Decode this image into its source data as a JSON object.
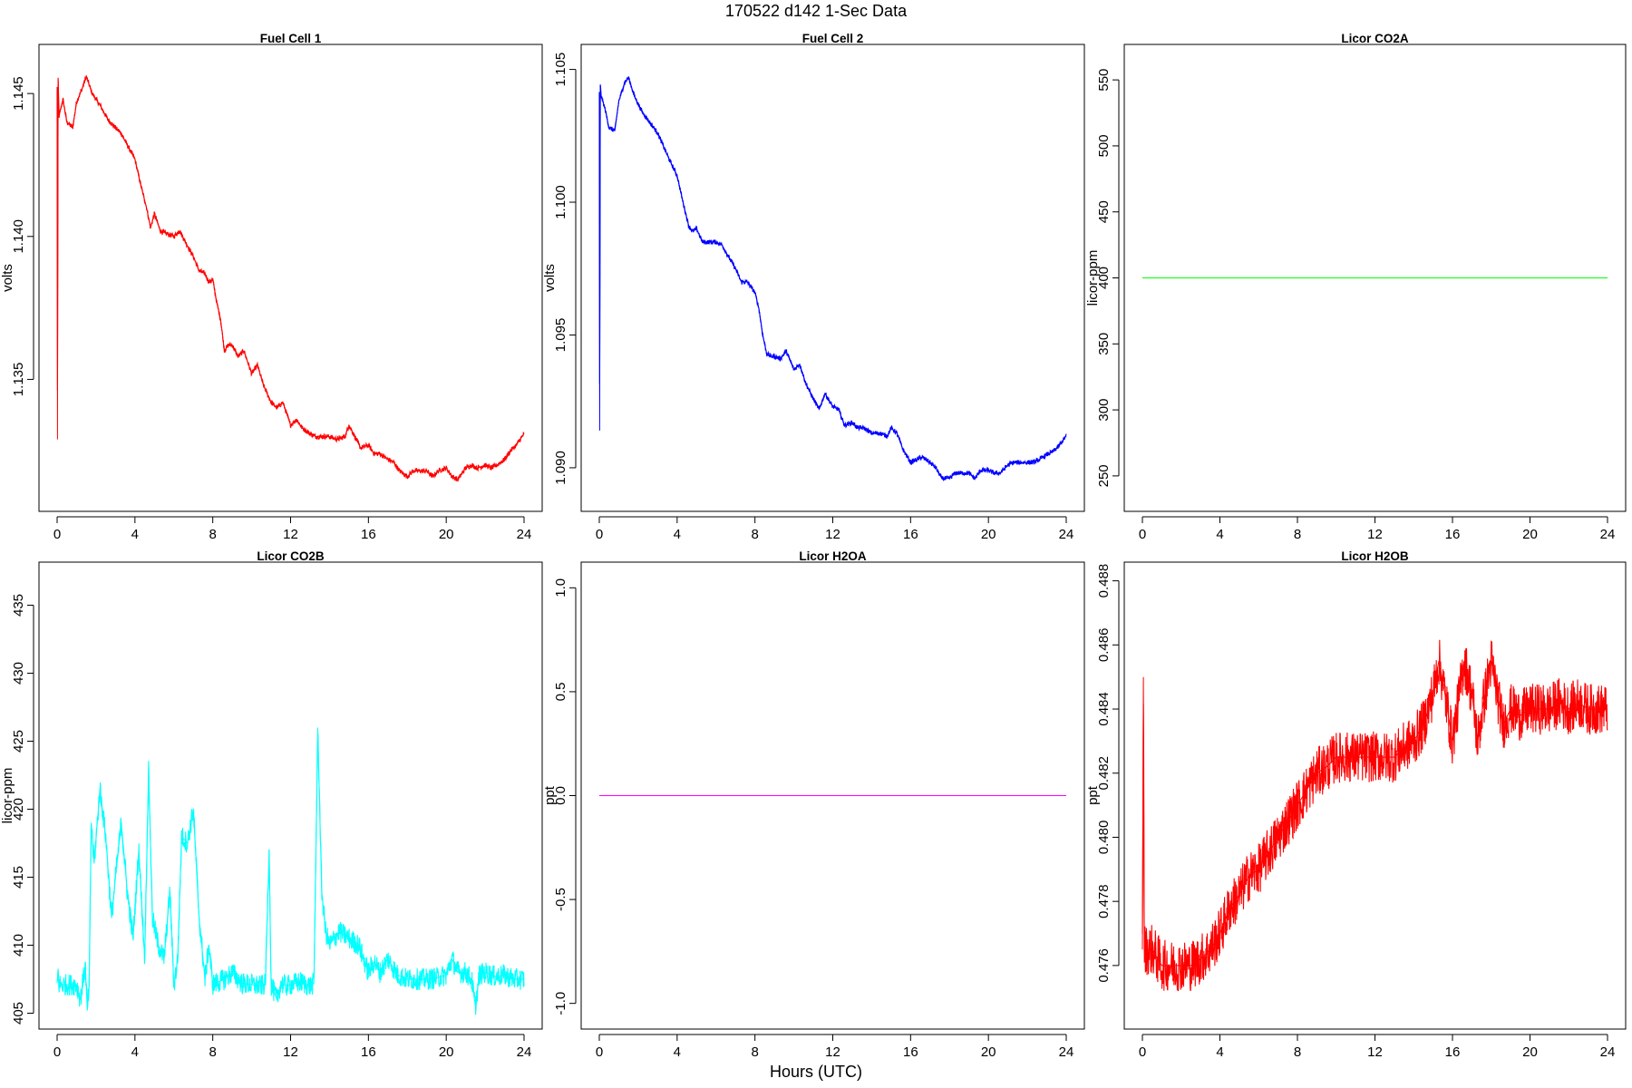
{
  "figure": {
    "title": "170522   d142   1-Sec Data",
    "xlabel": "Hours (UTC)"
  },
  "chart_data": [
    {
      "type": "line",
      "title": "Fuel Cell 1",
      "xlabel": "",
      "ylabel": "volts",
      "color": "#ff0000",
      "xlim": [
        0,
        24
      ],
      "ylim": [
        1.1307,
        1.1464
      ],
      "xticks": [
        "0",
        "4",
        "8",
        "12",
        "16",
        "20",
        "24"
      ],
      "yticks": [
        "1.135",
        "1.140",
        "1.145"
      ],
      "grid": false,
      "series": [
        {
          "x": [
            0,
            0.02,
            0.05,
            0.1,
            0.3,
            0.5,
            0.8,
            1.0,
            1.3,
            1.5,
            1.8,
            2.2,
            2.6,
            3.0,
            3.3,
            3.6,
            4.0,
            4.3,
            4.6,
            4.8,
            5.0,
            5.3,
            5.6,
            6.0,
            6.3,
            6.6,
            7.0,
            7.3,
            7.6,
            7.8,
            8.0,
            8.2,
            8.4,
            8.6,
            8.8,
            9.0,
            9.3,
            9.6,
            10.0,
            10.3,
            10.6,
            11.0,
            11.3,
            11.6,
            12.0,
            12.3,
            12.6,
            13.0,
            13.3,
            13.6,
            14.0,
            14.4,
            14.8,
            15.0,
            15.3,
            15.6,
            16.0,
            16.3,
            16.6,
            17.0,
            17.3,
            17.6,
            18.0,
            18.3,
            18.6,
            19.0,
            19.3,
            19.6,
            20.0,
            20.3,
            20.6,
            21.0,
            21.3,
            21.6,
            22.0,
            22.3,
            22.6,
            23.0,
            23.3,
            23.6,
            24.0
          ],
          "values": [
            1.1452,
            1.1329,
            1.1455,
            1.1442,
            1.1448,
            1.144,
            1.1438,
            1.1447,
            1.1452,
            1.1456,
            1.145,
            1.1446,
            1.1441,
            1.1438,
            1.1436,
            1.1432,
            1.1427,
            1.1418,
            1.141,
            1.1403,
            1.1408,
            1.1402,
            1.1401,
            1.14,
            1.1402,
            1.1398,
            1.1393,
            1.1388,
            1.1387,
            1.1384,
            1.1385,
            1.1377,
            1.1371,
            1.136,
            1.1362,
            1.1362,
            1.1358,
            1.136,
            1.1352,
            1.1355,
            1.1348,
            1.1342,
            1.134,
            1.1342,
            1.1334,
            1.1336,
            1.1333,
            1.1331,
            1.133,
            1.133,
            1.133,
            1.1329,
            1.133,
            1.1334,
            1.133,
            1.1326,
            1.1327,
            1.1324,
            1.1324,
            1.1322,
            1.1321,
            1.1318,
            1.1316,
            1.1318,
            1.1318,
            1.1318,
            1.1316,
            1.1318,
            1.1319,
            1.1316,
            1.1315,
            1.1319,
            1.132,
            1.1319,
            1.132,
            1.1319,
            1.132,
            1.1322,
            1.1325,
            1.1327,
            1.1331
          ]
        }
      ],
      "noise": 0.00018
    },
    {
      "type": "line",
      "title": "Fuel Cell 2",
      "xlabel": "",
      "ylabel": "volts",
      "color": "#0000ff",
      "xlim": [
        0,
        24
      ],
      "ylim": [
        1.0887,
        1.1056
      ],
      "xticks": [
        "0",
        "4",
        "8",
        "12",
        "16",
        "20",
        "24"
      ],
      "yticks": [
        "1.090",
        "1.095",
        "1.100",
        "1.105"
      ],
      "grid": false,
      "series": [
        {
          "x": [
            0,
            0.02,
            0.05,
            0.1,
            0.3,
            0.5,
            0.8,
            1.0,
            1.3,
            1.5,
            1.8,
            2.2,
            2.6,
            3.0,
            3.3,
            3.6,
            4.0,
            4.3,
            4.6,
            4.8,
            5.0,
            5.3,
            5.6,
            6.0,
            6.3,
            6.6,
            7.0,
            7.3,
            7.6,
            7.8,
            8.0,
            8.2,
            8.4,
            8.6,
            8.8,
            9.0,
            9.3,
            9.6,
            10.0,
            10.3,
            10.6,
            11.0,
            11.3,
            11.6,
            12.0,
            12.3,
            12.6,
            13.0,
            13.3,
            13.6,
            14.0,
            14.4,
            14.8,
            15.0,
            15.3,
            15.6,
            16.0,
            16.3,
            16.6,
            17.0,
            17.3,
            17.6,
            18.0,
            18.3,
            18.6,
            19.0,
            19.3,
            19.6,
            20.0,
            20.3,
            20.6,
            21.0,
            21.3,
            21.6,
            22.0,
            22.3,
            22.6,
            23.0,
            23.3,
            23.6,
            24.0
          ],
          "values": [
            1.1041,
            1.0914,
            1.1044,
            1.104,
            1.1035,
            1.1028,
            1.1027,
            1.1038,
            1.1045,
            1.1047,
            1.104,
            1.1034,
            1.103,
            1.1026,
            1.1021,
            1.1016,
            1.101,
            1.1,
            1.0991,
            1.0989,
            1.099,
            1.0985,
            1.0985,
            1.0985,
            1.0984,
            1.098,
            1.0975,
            1.097,
            1.097,
            1.0968,
            1.0966,
            1.096,
            1.095,
            1.0943,
            1.0942,
            1.0942,
            1.0941,
            1.0944,
            1.0937,
            1.0939,
            1.0932,
            1.0926,
            1.0922,
            1.0928,
            1.0923,
            1.0922,
            1.0916,
            1.0917,
            1.0915,
            1.0915,
            1.0913,
            1.0913,
            1.0912,
            1.0915,
            1.0913,
            1.0907,
            1.0902,
            1.0903,
            1.0904,
            1.0902,
            1.09,
            1.0896,
            1.0896,
            1.0898,
            1.0898,
            1.0898,
            1.0896,
            1.0899,
            1.0899,
            1.0898,
            1.0898,
            1.0901,
            1.0902,
            1.0902,
            1.0902,
            1.0902,
            1.0903,
            1.0905,
            1.0906,
            1.0908,
            1.0912
          ]
        }
      ],
      "noise": 0.00018
    },
    {
      "type": "line",
      "title": "Licor CO2A",
      "xlabel": "",
      "ylabel": "licor-ppm",
      "color": "#00ff00",
      "xlim": [
        0,
        24
      ],
      "ylim": [
        230,
        570
      ],
      "xticks": [
        "0",
        "4",
        "8",
        "12",
        "16",
        "20",
        "24"
      ],
      "yticks": [
        "250",
        "300",
        "350",
        "400",
        "450",
        "500",
        "550"
      ],
      "grid": false,
      "series": [
        {
          "x": [
            0,
            24
          ],
          "values": [
            400,
            400
          ]
        }
      ],
      "noise": 0
    },
    {
      "type": "line",
      "title": "Licor CO2B",
      "xlabel": "",
      "ylabel": "licor-ppm",
      "color": "#00ffff",
      "xlim": [
        0,
        24
      ],
      "ylim": [
        404.5,
        437.5
      ],
      "xticks": [
        "0",
        "4",
        "8",
        "12",
        "16",
        "20",
        "24"
      ],
      "yticks": [
        "405",
        "410",
        "415",
        "420",
        "425",
        "430",
        "435"
      ],
      "grid": false,
      "series": [
        {
          "x": [
            0,
            0.05,
            0.1,
            1.0,
            1.2,
            1.3,
            1.45,
            1.55,
            1.65,
            1.75,
            1.9,
            2.2,
            2.5,
            2.8,
            3.0,
            3.3,
            3.6,
            3.9,
            4.2,
            4.5,
            4.7,
            4.9,
            5.2,
            5.5,
            5.8,
            6.0,
            6.2,
            6.4,
            6.7,
            7.0,
            7.3,
            7.6,
            7.8,
            8.0,
            8.3,
            8.6,
            9.0,
            9.5,
            10.0,
            10.4,
            10.7,
            10.9,
            11.0,
            11.3,
            11.5,
            11.8,
            12.0,
            12.5,
            13.0,
            13.2,
            13.4,
            13.6,
            13.8,
            14.0,
            14.5,
            15.0,
            15.5,
            16.0,
            16.3,
            16.6,
            17.0,
            17.5,
            18.0,
            18.5,
            19.0,
            19.5,
            20.0,
            20.3,
            20.6,
            21.0,
            21.3,
            21.5,
            21.7,
            22.0,
            22.5,
            23.0,
            23.5,
            24.0
          ],
          "values": [
            407.2,
            408.0,
            407.1,
            407.1,
            406.0,
            407.1,
            408.5,
            405.2,
            407.0,
            419.0,
            416.0,
            421.5,
            418.0,
            412.0,
            415.0,
            419.0,
            414.0,
            410.5,
            417.0,
            409.0,
            423.0,
            412.0,
            410.0,
            409.0,
            414.0,
            407.0,
            409.0,
            418.0,
            417.5,
            420.0,
            412.0,
            407.5,
            410.0,
            407.1,
            407.3,
            407.5,
            408.0,
            407.2,
            407.1,
            407.0,
            407.1,
            417.0,
            407.1,
            406.0,
            407.2,
            407.0,
            407.1,
            407.3,
            407.0,
            407.2,
            426.0,
            414.0,
            411.0,
            410.0,
            411.0,
            410.5,
            410.0,
            408.0,
            408.8,
            408.0,
            409.0,
            407.8,
            407.5,
            407.5,
            407.5,
            407.6,
            407.8,
            409.0,
            408.0,
            408.0,
            407.5,
            405.5,
            407.8,
            408.0,
            407.7,
            407.8,
            407.5,
            407.5
          ]
        }
      ],
      "noise": 1.6
    },
    {
      "type": "line",
      "title": "Licor H2OA",
      "xlabel": "",
      "ylabel": "ppt",
      "color": "#ff00ff",
      "xlim": [
        0,
        24
      ],
      "ylim": [
        -1.08,
        1.08
      ],
      "xticks": [
        "0",
        "4",
        "8",
        "12",
        "16",
        "20",
        "24"
      ],
      "yticks": [
        "-1.0",
        "-0.5",
        "0.0",
        "0.5",
        "1.0"
      ],
      "grid": false,
      "series": [
        {
          "x": [
            0,
            24
          ],
          "values": [
            0,
            0
          ]
        }
      ],
      "noise": 0
    },
    {
      "type": "line",
      "title": "Licor H2OB",
      "xlabel": "",
      "ylabel": "ppt",
      "color": "#ff0000",
      "xlim": [
        0,
        24
      ],
      "ylim": [
        0.4743,
        0.4883
      ],
      "xticks": [
        "0",
        "4",
        "8",
        "12",
        "16",
        "20",
        "24"
      ],
      "yticks": [
        "0.476",
        "0.478",
        "0.480",
        "0.482",
        "0.484",
        "0.486",
        "0.488"
      ],
      "grid": false,
      "series": [
        {
          "x": [
            0,
            0.05,
            0.1,
            0.5,
            1.0,
            1.5,
            2.0,
            2.5,
            3.0,
            3.5,
            4.0,
            4.5,
            5.0,
            5.5,
            6.0,
            6.5,
            7.0,
            7.5,
            8.0,
            8.5,
            9.0,
            9.5,
            10.0,
            10.5,
            11.0,
            11.5,
            12.0,
            12.5,
            13.0,
            13.5,
            14.0,
            14.5,
            15.0,
            15.3,
            15.6,
            16.0,
            16.3,
            16.6,
            17.0,
            17.3,
            17.6,
            18.0,
            18.3,
            18.6,
            19.0,
            19.5,
            20.0,
            20.5,
            21.0,
            21.5,
            22.0,
            22.5,
            23.0,
            23.5,
            24.0
          ],
          "values": [
            0.4765,
            0.485,
            0.4765,
            0.4765,
            0.476,
            0.476,
            0.476,
            0.476,
            0.4762,
            0.4765,
            0.477,
            0.4778,
            0.4782,
            0.4788,
            0.479,
            0.4795,
            0.48,
            0.4805,
            0.481,
            0.4815,
            0.482,
            0.4822,
            0.4825,
            0.4825,
            0.4825,
            0.4825,
            0.4825,
            0.4825,
            0.4825,
            0.4828,
            0.483,
            0.4835,
            0.4845,
            0.4855,
            0.4845,
            0.483,
            0.4842,
            0.4855,
            0.4845,
            0.483,
            0.4842,
            0.4855,
            0.4845,
            0.4835,
            0.484,
            0.4838,
            0.484,
            0.484,
            0.484,
            0.4842,
            0.484,
            0.4842,
            0.484,
            0.484,
            0.484
          ]
        }
      ],
      "noise": 0.0016
    }
  ]
}
